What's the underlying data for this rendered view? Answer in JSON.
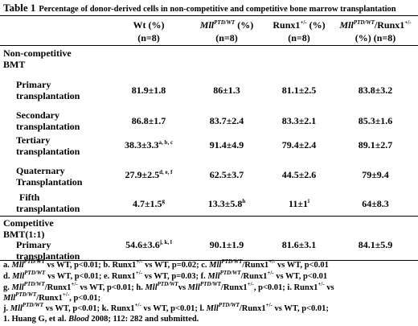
{
  "caption": {
    "label": "Table 1",
    "text": "Percentage of donor-derived cells in non-competitive and competitive bone marrow transplantation"
  },
  "headers": {
    "wt": {
      "line1": "Wt (%)",
      "line2": "(n=8)"
    },
    "mll": {
      "gene": "Mll",
      "sup": "PTD/WT",
      "suffix": " (%)",
      "line2": "(n=8)"
    },
    "runx": {
      "gene": "Runx1",
      "sup": "+/-",
      "suffix": " (%)",
      "line2": "(n=8)"
    },
    "mllrunx": {
      "gene": "Mll",
      "sup": "PTD/WT",
      "mid": "/Runx1",
      "sup2": "+/-",
      "line2": "(%) (n=8)"
    }
  },
  "sections": {
    "noncompetitive": {
      "line1": "Non-competitive",
      "line2": "BMT"
    },
    "competitive": {
      "line1": "Competitive",
      "line2": "BMT(1:1)"
    }
  },
  "rows": [
    {
      "label1": "Primary",
      "label2": "transplantation",
      "wt": "81.9±1.8",
      "wt_sup": "",
      "mll": "86±1.3",
      "mll_sup": "",
      "runx": "81.1±2.5",
      "runx_sup": "",
      "mllrunx": "83.8±3.2"
    },
    {
      "label1": "Secondary",
      "label2": "transplantation",
      "wt": "86.8±1.7",
      "wt_sup": "",
      "mll": "83.7±2.4",
      "mll_sup": "",
      "runx": "83.3±2.1",
      "runx_sup": "",
      "mllrunx": "85.3±1.6"
    },
    {
      "label1": "Tertiary",
      "label2": "transplantation",
      "wt": "38.3±3.3",
      "wt_sup": "a, b, c",
      "mll": "91.4±4.9",
      "mll_sup": "",
      "runx": "79.4±2.4",
      "runx_sup": "",
      "mllrunx": "89.1±2.7"
    },
    {
      "label1": "Quaternary",
      "label2": "Transplantation",
      "wt": "27.9±2.5",
      "wt_sup": "d, e, f",
      "mll": "62.5±3.7",
      "mll_sup": "",
      "runx": "44.5±2.6",
      "runx_sup": "",
      "mllrunx": "79±9.4"
    },
    {
      "label1": "Fifth",
      "label2": "transplantation",
      "wt": "4.7±1.5",
      "wt_sup": "g",
      "mll": "13.3±5.8",
      "mll_sup": "h",
      "runx": "11±1",
      "runx_sup": "i",
      "mllrunx": "64±8.3"
    },
    {
      "label1": "Primary",
      "label2": "transplantation",
      "wt": "54.6±3.6",
      "wt_sup": "j, k, l",
      "mll": "90.1±1.9",
      "mll_sup": "",
      "runx": "81.6±3.1",
      "runx_sup": "",
      "mllrunx": "84.1±5.9"
    }
  ],
  "footnotes": {
    "f1": {
      "a1": "a. ",
      "a2": "Mll",
      "a3": "PTD/WT",
      "a4": " vs WT, p<0.01; b. Runx1",
      "a5": "+/-",
      "a6": " vs WT, p=0.02; c. ",
      "a7": "Mll",
      "a8": "PTD/WT",
      "a9": "/Runx1",
      "a10": "+/-",
      "a11": " vs WT, p<0.01"
    },
    "f2": {
      "a1": "d. ",
      "a2": "Mll",
      "a3": "PTD/WT",
      "a4": " vs WT, p<0.01; e. Runx1",
      "a5": "+/-",
      "a6": " vs WT, p=0.03; f. ",
      "a7": "Mll",
      "a8": "PTD/WT",
      "a9": "/Runx1",
      "a10": "+/-",
      "a11": " vs WT, p<0.01"
    },
    "f3": {
      "a1": "g. ",
      "a2": "Mll",
      "a3": "PTD/WT",
      "a4": "/Runx1",
      "a5": "+/-",
      "a6": " vs WT, p<0.01; h. ",
      "a7": "Mll",
      "a8": "PTD/WT",
      "a9": "vs ",
      "a10": "Mll",
      "a11": "PTD/WT",
      "a12": "/Runx1",
      "a13": "+/-",
      "a14": ",  p<0.01; i. Runx1",
      "a15": "+/-",
      "a16": " vs"
    },
    "f4": {
      "a1": "Mll",
      "a2": "PTD/WT",
      "a3": "/Runx1",
      "a4": "+/-",
      "a5": ", p<0.01;"
    },
    "f5": {
      "a1": "j. ",
      "a2": "Mll",
      "a3": "PTD/WT",
      "a4": " vs WT, p<0.01; k. Runx1",
      "a5": "+/-",
      "a6": " vs WT, p<0.01; l. ",
      "a7": "Mll",
      "a8": "PTD/WT",
      "a9": "/Runx1",
      "a10": "+/-",
      "a11": " vs WT, p<0.01;"
    },
    "f6": {
      "a1": "1. Huang G, et al.  ",
      "a2": "Blood",
      "a3": " 2008; 112: 282 and submitted."
    }
  }
}
